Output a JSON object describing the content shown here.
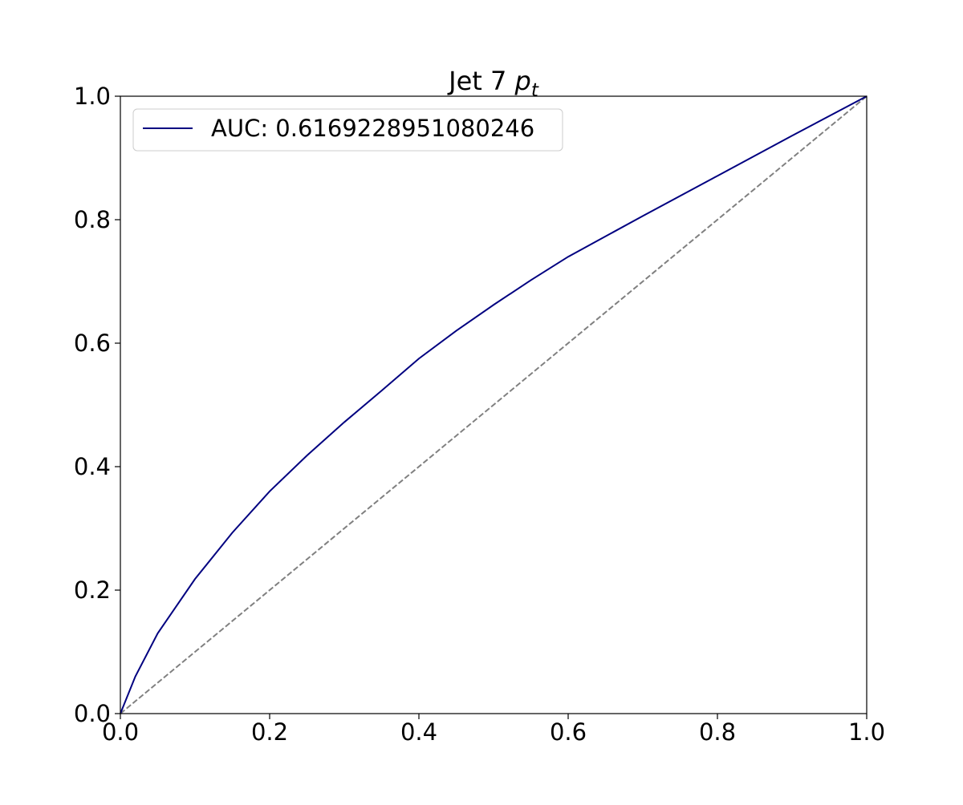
{
  "chart_data": {
    "type": "line",
    "title": {
      "text": "Jet 7 ",
      "symbol": "p",
      "subscript": "t"
    },
    "series": [
      {
        "name": "AUC: 0.6169228951080246",
        "color": "#000080",
        "x": [
          0,
          0.02,
          0.05,
          0.1,
          0.15,
          0.2,
          0.25,
          0.3,
          0.35,
          0.4,
          0.45,
          0.5,
          0.55,
          0.6,
          0.7,
          0.8,
          0.9,
          1
        ],
        "y": [
          0,
          0.06,
          0.13,
          0.218,
          0.293,
          0.36,
          0.418,
          0.472,
          0.523,
          0.575,
          0.62,
          0.662,
          0.702,
          0.74,
          0.806,
          0.871,
          0.936,
          1
        ]
      }
    ],
    "reference_line": {
      "x": [
        0,
        1
      ],
      "y": [
        0,
        1
      ],
      "color": "#808080",
      "dashed": true
    },
    "xlim": [
      0,
      1
    ],
    "ylim": [
      0,
      1
    ],
    "xticks": [
      {
        "value": 0,
        "label": "0.0"
      },
      {
        "value": 0.2,
        "label": "0.2"
      },
      {
        "value": 0.4,
        "label": "0.4"
      },
      {
        "value": 0.6,
        "label": "0.6"
      },
      {
        "value": 0.8,
        "label": "0.8"
      },
      {
        "value": 1,
        "label": "1.0"
      }
    ],
    "yticks": [
      {
        "value": 0,
        "label": "0.0"
      },
      {
        "value": 0.2,
        "label": "0.2"
      },
      {
        "value": 0.4,
        "label": "0.4"
      },
      {
        "value": 0.6,
        "label": "0.6"
      },
      {
        "value": 0.8,
        "label": "0.8"
      },
      {
        "value": 1,
        "label": "1.0"
      }
    ],
    "legend": "upper left",
    "grid": false
  }
}
